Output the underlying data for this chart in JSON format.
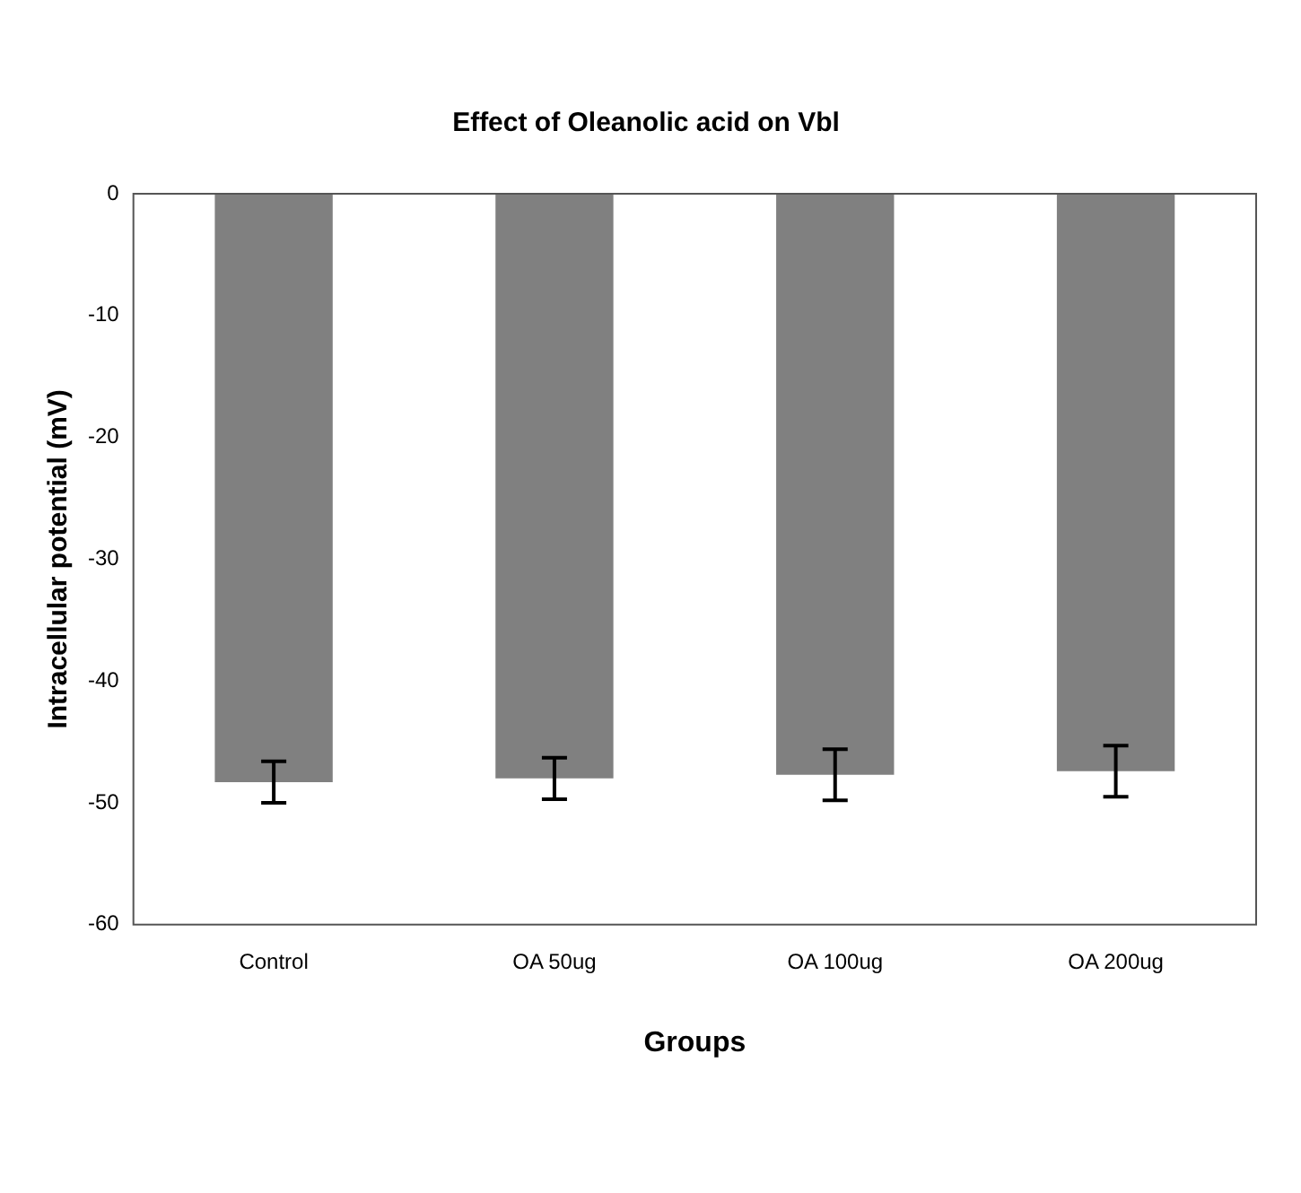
{
  "chart_data": {
    "type": "bar",
    "title": "Effect of Oleanolic acid on Vbl",
    "xlabel": "Groups",
    "ylabel": "Intracellular potential (mV)",
    "categories": [
      "Control",
      "OA 50ug",
      "OA 100ug",
      "OA 200ug"
    ],
    "values": [
      -48.3,
      -48.0,
      -47.7,
      -47.4
    ],
    "errors": [
      1.7,
      1.7,
      2.1,
      2.1
    ],
    "color": "#808080",
    "ylim": [
      -60,
      0
    ],
    "yticks": [
      -60,
      -50,
      -40,
      -30,
      -20,
      -10,
      0
    ],
    "grid": false,
    "legend": false
  }
}
